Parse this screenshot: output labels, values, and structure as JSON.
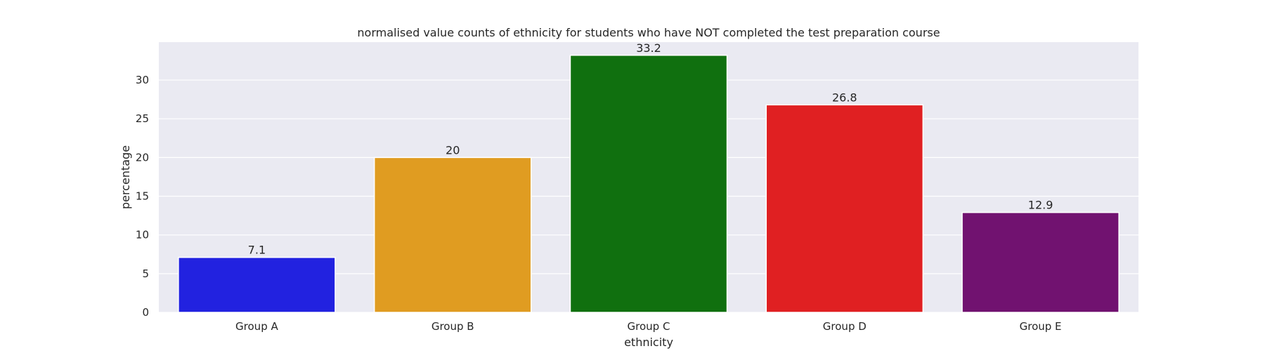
{
  "chart_data": {
    "type": "bar",
    "title": "normalised value counts of ethnicity for students who have NOT completed the test preparation course",
    "xlabel": "ethnicity",
    "ylabel": "percentage",
    "categories": [
      "Group A",
      "Group B",
      "Group C",
      "Group D",
      "Group E"
    ],
    "values": [
      7.1,
      20,
      33.2,
      26.8,
      12.9
    ],
    "value_labels": [
      "7.1",
      "20",
      "33.2",
      "26.8",
      "12.9"
    ],
    "colors": [
      "#2222e0",
      "#e09c21",
      "#10700f",
      "#e02022",
      "#711270"
    ],
    "ylim": [
      0,
      34.9
    ],
    "yticks": [
      0,
      5,
      10,
      15,
      20,
      25,
      30
    ],
    "ytick_labels": [
      "0",
      "5",
      "10",
      "15",
      "20",
      "25",
      "30"
    ],
    "grid": true,
    "background_color": "#eaeaf2",
    "grid_color": "#ffffff"
  }
}
